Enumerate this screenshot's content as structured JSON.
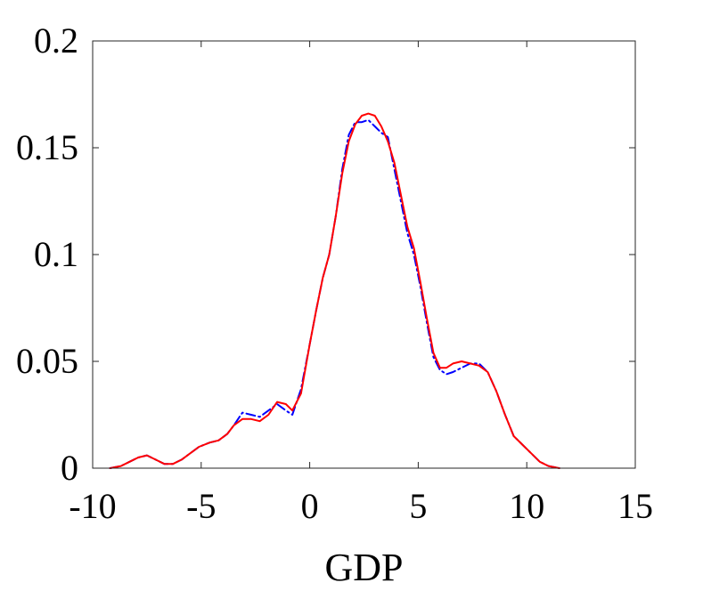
{
  "chart_data": {
    "type": "line",
    "title": "",
    "xlabel": "GDP",
    "ylabel": "",
    "xlim": [
      -10,
      15
    ],
    "ylim": [
      0,
      0.2
    ],
    "xticks": [
      "-10",
      "-5",
      "0",
      "5",
      "10",
      "15"
    ],
    "yticks": [
      "0",
      "0.05",
      "0.1",
      "0.15",
      "0.2"
    ],
    "grid": false,
    "series": [
      {
        "color": "#0000ff",
        "linestyle": "dash-dot",
        "x": [
          -9.2,
          -8.7,
          -8.3,
          -7.9,
          -7.5,
          -7.1,
          -6.7,
          -6.3,
          -5.9,
          -5.5,
          -5.1,
          -4.6,
          -4.2,
          -3.8,
          -3.5,
          -3.1,
          -2.7,
          -2.3,
          -1.9,
          -1.5,
          -1.1,
          -0.8,
          -0.4,
          0.0,
          0.3,
          0.6,
          0.9,
          1.2,
          1.5,
          1.8,
          2.1,
          2.4,
          2.7,
          3.0,
          3.3,
          3.6,
          3.9,
          4.2,
          4.5,
          4.8,
          5.1,
          5.4,
          5.7,
          6.0,
          6.3,
          6.6,
          7.0,
          7.4,
          7.8,
          8.2,
          8.6,
          9.0,
          9.4,
          9.8,
          10.2,
          10.6,
          11.0,
          11.5
        ],
        "y": [
          0.0,
          0.001,
          0.003,
          0.005,
          0.006,
          0.004,
          0.002,
          0.002,
          0.004,
          0.007,
          0.01,
          0.012,
          0.013,
          0.016,
          0.02,
          0.026,
          0.025,
          0.024,
          0.027,
          0.03,
          0.027,
          0.025,
          0.037,
          0.058,
          0.074,
          0.089,
          0.1,
          0.118,
          0.14,
          0.156,
          0.162,
          0.162,
          0.163,
          0.16,
          0.157,
          0.155,
          0.14,
          0.125,
          0.11,
          0.1,
          0.085,
          0.068,
          0.052,
          0.046,
          0.044,
          0.045,
          0.047,
          0.049,
          0.049,
          0.045,
          0.036,
          0.025,
          0.015,
          0.011,
          0.007,
          0.003,
          0.001,
          0.0
        ]
      },
      {
        "color": "#ff0000",
        "linestyle": "solid",
        "x": [
          -9.2,
          -8.7,
          -8.3,
          -7.9,
          -7.5,
          -7.1,
          -6.7,
          -6.3,
          -5.9,
          -5.5,
          -5.1,
          -4.6,
          -4.2,
          -3.8,
          -3.5,
          -3.1,
          -2.7,
          -2.3,
          -1.9,
          -1.5,
          -1.1,
          -0.8,
          -0.4,
          0.0,
          0.3,
          0.6,
          0.9,
          1.2,
          1.5,
          1.8,
          2.1,
          2.4,
          2.7,
          3.0,
          3.3,
          3.6,
          3.9,
          4.2,
          4.5,
          4.8,
          5.1,
          5.4,
          5.7,
          6.0,
          6.3,
          6.6,
          7.0,
          7.4,
          7.8,
          8.2,
          8.6,
          9.0,
          9.4,
          9.8,
          10.2,
          10.6,
          11.0,
          11.5
        ],
        "y": [
          0.0,
          0.001,
          0.003,
          0.005,
          0.006,
          0.004,
          0.002,
          0.002,
          0.004,
          0.007,
          0.01,
          0.012,
          0.013,
          0.016,
          0.02,
          0.023,
          0.023,
          0.022,
          0.025,
          0.031,
          0.03,
          0.027,
          0.035,
          0.058,
          0.074,
          0.089,
          0.1,
          0.118,
          0.138,
          0.153,
          0.161,
          0.165,
          0.166,
          0.165,
          0.16,
          0.153,
          0.143,
          0.128,
          0.113,
          0.103,
          0.087,
          0.07,
          0.054,
          0.047,
          0.047,
          0.049,
          0.05,
          0.049,
          0.048,
          0.045,
          0.036,
          0.025,
          0.015,
          0.011,
          0.007,
          0.003,
          0.001,
          0.0
        ]
      }
    ]
  }
}
